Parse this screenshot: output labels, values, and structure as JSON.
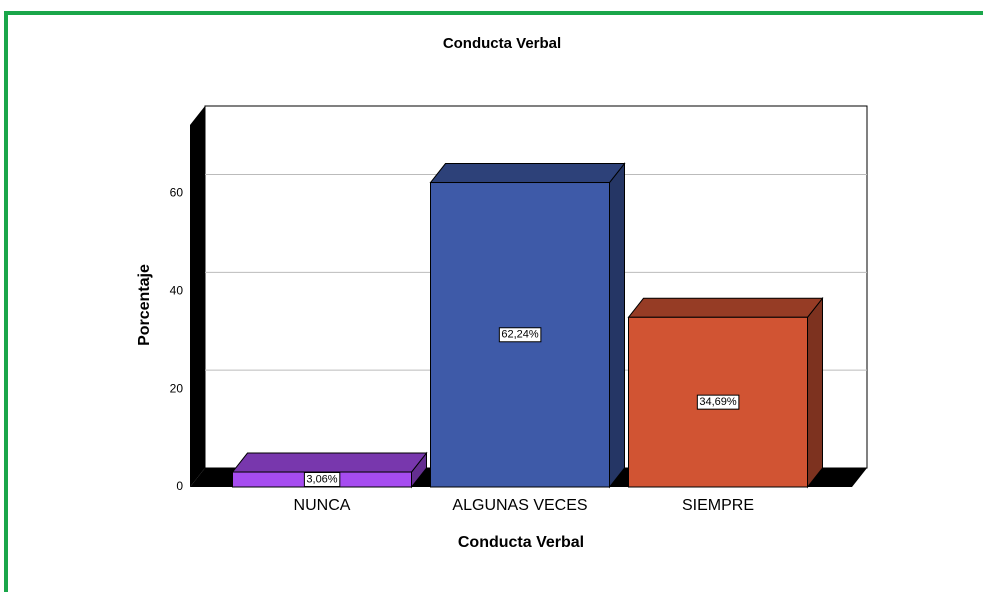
{
  "chart_data": {
    "type": "bar",
    "title": "Conducta Verbal",
    "x_label": "Conducta Verbal",
    "y_label": "Porcentaje",
    "categories": [
      "NUNCA",
      "ALGUNAS VECES",
      "SIEMPRE"
    ],
    "values": [
      3.06,
      62.24,
      34.69
    ],
    "value_labels": [
      "3,06%",
      "62,24%",
      "34,69%"
    ],
    "colors": [
      "#a64cf0",
      "#3e5aa8",
      "#d15433"
    ],
    "ylim": [
      0,
      74
    ],
    "yticks": [
      0,
      20,
      40,
      60
    ],
    "grid": true
  }
}
